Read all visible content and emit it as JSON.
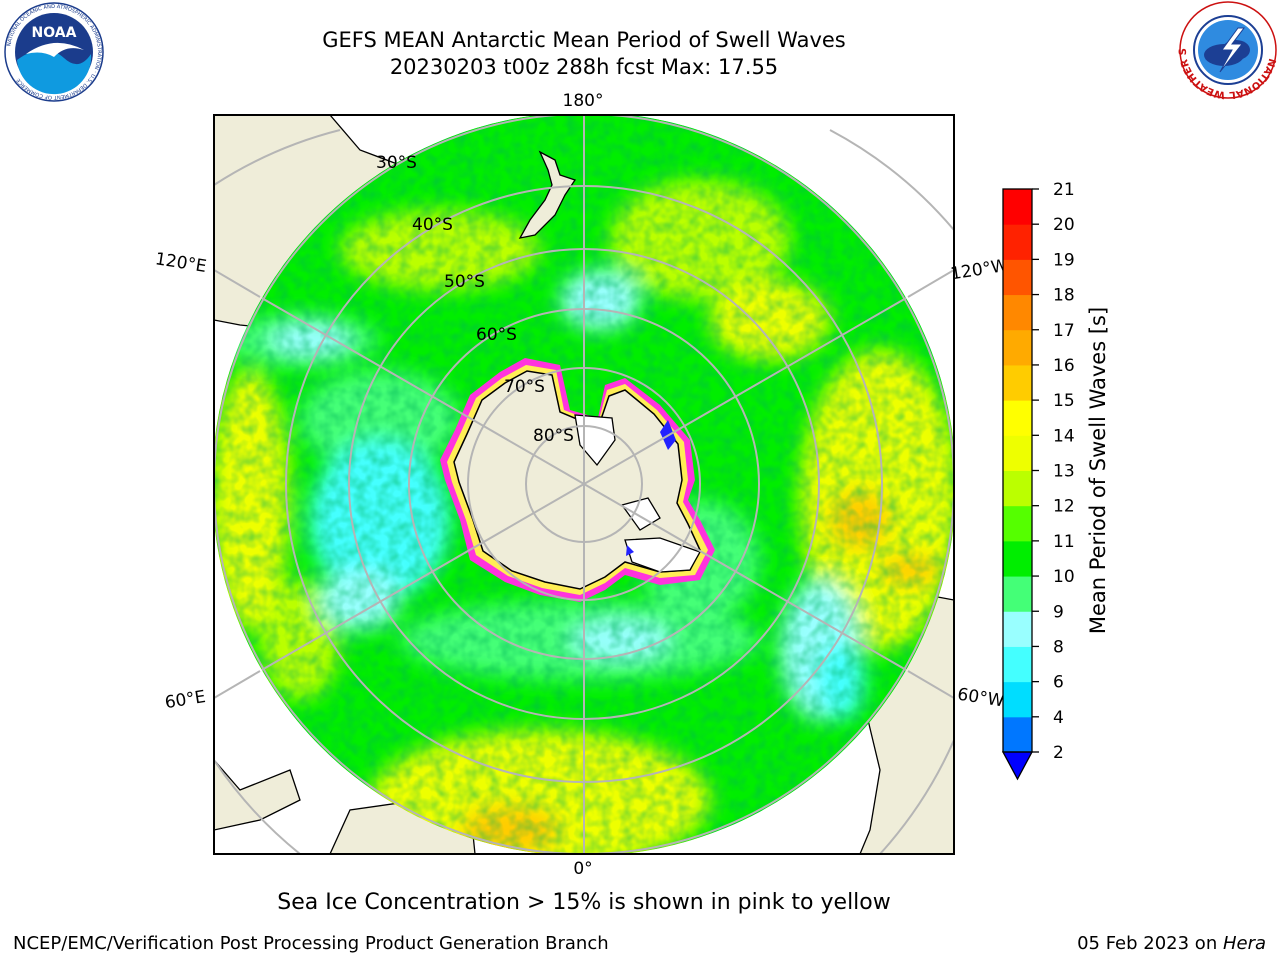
{
  "header": {
    "title_line1": "GEFS MEAN Antarctic Mean Period of Swell Waves",
    "title_line2": "20230203 t00z 288h fcst   Max: 17.55",
    "left_logo": "noaa-logo",
    "left_logo_text": "NOAA",
    "left_logo_ring_text": "NATIONAL OCEANIC AND ATMOSPHERIC ADMINISTRATION · U.S. DEPARTMENT OF COMMERCE",
    "right_logo": "nws-logo",
    "right_logo_ring_text": "NATIONAL WEATHER SERVICE"
  },
  "map": {
    "projection": "south-polar-stereographic",
    "longitude_labels": [
      "180°",
      "120°E",
      "120°W",
      "60°E",
      "60°W",
      "0°"
    ],
    "latitude_labels": [
      "30°S",
      "40°S",
      "50°S",
      "60°S",
      "70°S",
      "80°S"
    ],
    "land_color": "#efedd9",
    "ice_edge_color": "#ff33dd"
  },
  "colorbar": {
    "label": "Mean Period of Swell Waves [s]",
    "ticks": [
      "2",
      "4",
      "6",
      "8",
      "9",
      "10",
      "11",
      "12",
      "13",
      "14",
      "15",
      "16",
      "17",
      "18",
      "19",
      "20",
      "21"
    ],
    "colors": [
      "#0000ff",
      "#0077ff",
      "#00ddff",
      "#44ffff",
      "#99ffff",
      "#44ff77",
      "#00ee00",
      "#55ff00",
      "#bbff00",
      "#eeff00",
      "#ffff00",
      "#ffcc00",
      "#ffaa00",
      "#ff8800",
      "#ff5500",
      "#ff2200",
      "#ff0000"
    ],
    "extend": "min"
  },
  "note": "Sea Ice Concentration > 15% is shown in pink to yellow",
  "footer": {
    "left": "NCEP/EMC/Verification Post Processing Product Generation Branch",
    "date": "05 Feb 2023 on ",
    "host": "Hera"
  }
}
